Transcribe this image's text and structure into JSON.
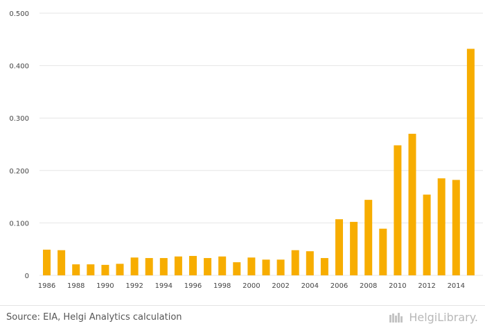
{
  "chart_data": {
    "type": "bar",
    "title": "",
    "xlabel": "",
    "ylabel": "",
    "ylim": [
      0,
      0.5
    ],
    "y_ticks": [
      "0",
      "0.100",
      "0.200",
      "0.300",
      "0.400",
      "0.500"
    ],
    "y_tick_values": [
      0,
      0.1,
      0.2,
      0.3,
      0.4,
      0.5
    ],
    "grid": true,
    "categories": [
      "1986",
      "1987",
      "1988",
      "1989",
      "1990",
      "1991",
      "1992",
      "1993",
      "1994",
      "1995",
      "1996",
      "1997",
      "1998",
      "1999",
      "2000",
      "2001",
      "2002",
      "2003",
      "2004",
      "2005",
      "2006",
      "2007",
      "2008",
      "2009",
      "2010",
      "2011",
      "2012",
      "2013",
      "2014",
      "2015"
    ],
    "x_tick_labels": [
      "1986",
      "1988",
      "1990",
      "1992",
      "1994",
      "1996",
      "1998",
      "2000",
      "2002",
      "2004",
      "2006",
      "2008",
      "2010",
      "2012",
      "2014"
    ],
    "values": [
      0.049,
      0.048,
      0.021,
      0.021,
      0.02,
      0.022,
      0.034,
      0.033,
      0.033,
      0.036,
      0.037,
      0.033,
      0.036,
      0.025,
      0.034,
      0.03,
      0.03,
      0.048,
      0.046,
      0.033,
      0.107,
      0.102,
      0.144,
      0.089,
      0.248,
      0.27,
      0.154,
      0.185,
      0.182,
      0.432
    ],
    "bar_color": "#f7ad00",
    "grid_color": "#e6e6e6"
  },
  "footer": {
    "source": "Source: EIA, Helgi Analytics calculation",
    "brand": "HelgiLibrary."
  }
}
